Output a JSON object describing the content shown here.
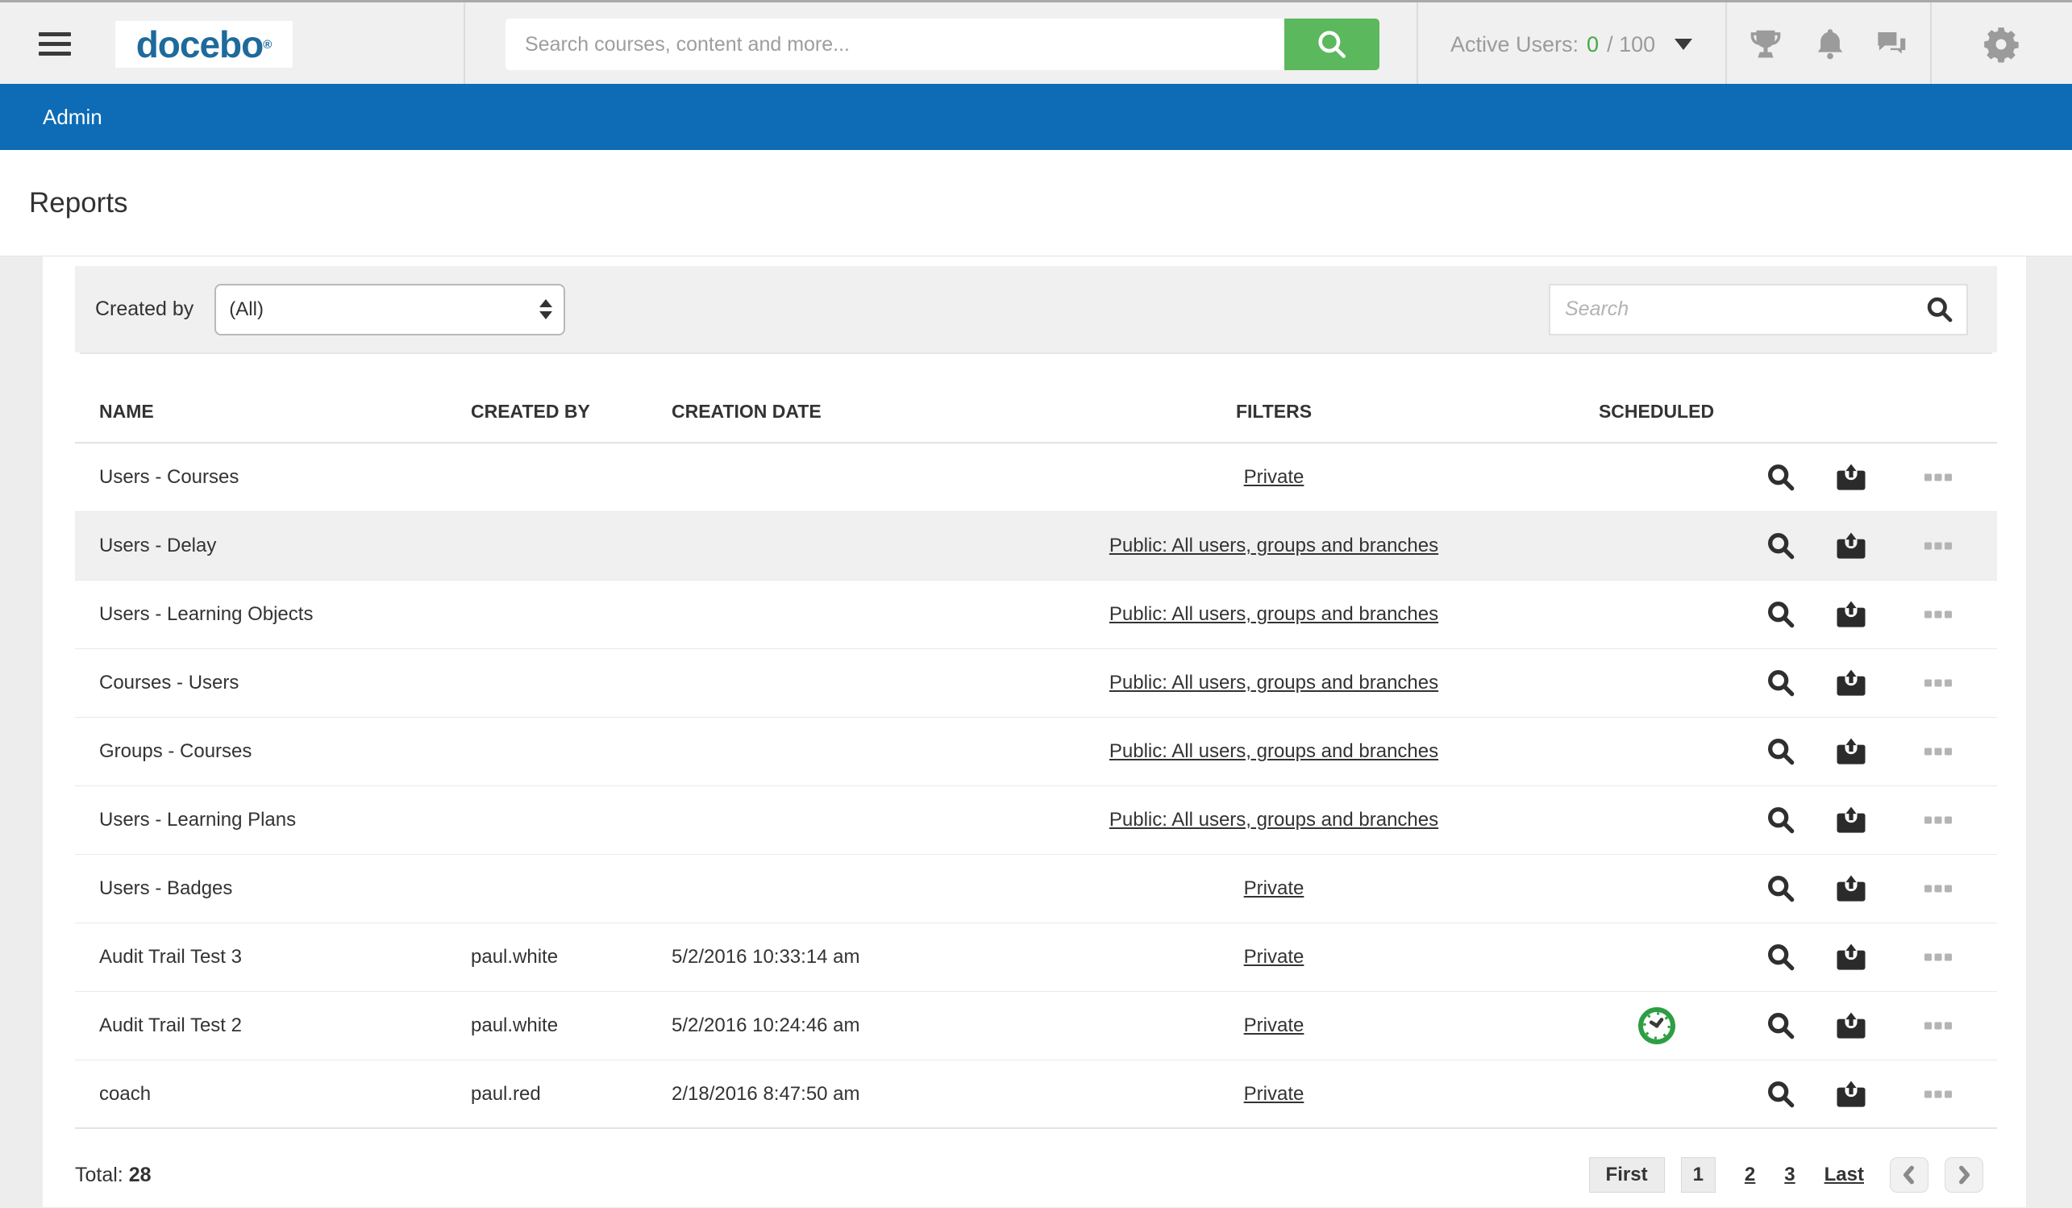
{
  "topbar": {
    "logo_text": "docebo",
    "logo_reg": "®",
    "search_placeholder": "Search courses, content and more...",
    "active_users": {
      "label": "Active Users:",
      "count": "0",
      "total": "/ 100"
    }
  },
  "admin_bar": {
    "label": "Admin"
  },
  "page": {
    "title": "Reports"
  },
  "filter_bar": {
    "created_by_label": "Created by",
    "created_by_value": "(All)",
    "search_placeholder": "Search"
  },
  "table": {
    "columns": [
      "NAME",
      "CREATED BY",
      "CREATION DATE",
      "FILTERS",
      "SCHEDULED"
    ],
    "rows": [
      {
        "name": "Users - Courses",
        "created_by": "",
        "creation_date": "",
        "filters": "Private",
        "scheduled": false,
        "highlighted": false
      },
      {
        "name": "Users - Delay",
        "created_by": "",
        "creation_date": "",
        "filters": "Public: All users, groups and branches",
        "scheduled": false,
        "highlighted": true
      },
      {
        "name": "Users - Learning Objects",
        "created_by": "",
        "creation_date": "",
        "filters": "Public: All users, groups and branches",
        "scheduled": false,
        "highlighted": false
      },
      {
        "name": "Courses - Users",
        "created_by": "",
        "creation_date": "",
        "filters": "Public: All users, groups and branches",
        "scheduled": false,
        "highlighted": false
      },
      {
        "name": "Groups - Courses",
        "created_by": "",
        "creation_date": "",
        "filters": "Public: All users, groups and branches",
        "scheduled": false,
        "highlighted": false
      },
      {
        "name": "Users - Learning Plans",
        "created_by": "",
        "creation_date": "",
        "filters": "Public: All users, groups and branches",
        "scheduled": false,
        "highlighted": false
      },
      {
        "name": "Users - Badges",
        "created_by": "",
        "creation_date": "",
        "filters": "Private",
        "scheduled": false,
        "highlighted": false
      },
      {
        "name": "Audit Trail Test 3",
        "created_by": "paul.white",
        "creation_date": "5/2/2016 10:33:14 am",
        "filters": "Private",
        "scheduled": false,
        "highlighted": false
      },
      {
        "name": "Audit Trail Test 2",
        "created_by": "paul.white",
        "creation_date": "5/2/2016 10:24:46 am",
        "filters": "Private",
        "scheduled": true,
        "highlighted": false
      },
      {
        "name": "coach",
        "created_by": "paul.red",
        "creation_date": "2/18/2016 8:47:50 am",
        "filters": "Private",
        "scheduled": false,
        "highlighted": false
      }
    ]
  },
  "footer": {
    "total_label": "Total:",
    "total_value": "28",
    "pagination": {
      "first_label": "First",
      "page_labels": [
        "1",
        "2",
        "3"
      ],
      "current_page": "1",
      "last_label": "Last"
    }
  },
  "colors": {
    "admin-blue": "#0d6cb5",
    "accent-green": "#5cb85c",
    "active-green": "#45a845",
    "scheduled-green": "#2e9e44",
    "brand-blue": "#1e6a9c"
  }
}
